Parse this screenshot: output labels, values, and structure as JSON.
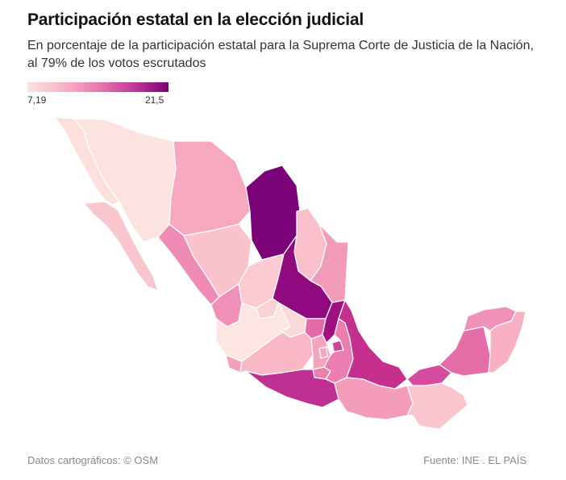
{
  "header": {
    "title": "Participación estatal en la elección judicial",
    "subtitle": "En porcentaje de la participación estatal para la Suprema Corte de Justicia de la Nación, al 79% de los votos escrutados"
  },
  "legend": {
    "min_label": "7,19",
    "max_label": "21,5",
    "min_value": 7.19,
    "max_value": 21.5,
    "colors": [
      "#fde3df",
      "#f7b6c8",
      "#ea79b0",
      "#c23a97",
      "#7a0177"
    ]
  },
  "map": {
    "region": "México",
    "state_colors": {
      "baja-california": "#fddfdb",
      "baja-california-sur": "#f9c6ce",
      "sonora": "#fde3df",
      "chihuahua": "#f6a8bf",
      "coahuila": "#7a0177",
      "nuevo-leon": "#f9c0cb",
      "tamaulipas": "#f19ab9",
      "sinaloa": "#ef8bb5",
      "durango": "#fac3cb",
      "zacatecas": "#fbcbd1",
      "san-luis-potosi": "#8f0a7e",
      "nayarit": "#f08fb7",
      "aguascalientes": "#fad1d5",
      "jalisco": "#fde6e2",
      "guanajuato": "#fbd9d9",
      "queretaro": "#e46aa8",
      "hidalgo": "#a0107f",
      "veracruz": "#c5308f",
      "colima": "#f3a0bb",
      "michoacan": "#f8b8c6",
      "estado-de-mexico": "#f5a4bd",
      "cdmx": "#f6a8bf",
      "morelos": "#ea7eb0",
      "tlaxcala": "#d0449a",
      "puebla": "#ec7db1",
      "guerrero": "#c02f92",
      "oaxaca": "#f39dba",
      "tabasco": "#d34c9f",
      "chiapas": "#fac6cd",
      "campeche": "#e56da7",
      "yucatan": "#f091b8",
      "quintana-roo": "#f8b0c2"
    }
  },
  "footer": {
    "credit": "Datos cartográficos: © OSM",
    "source": "Fuente: INE . EL PAÍS"
  }
}
